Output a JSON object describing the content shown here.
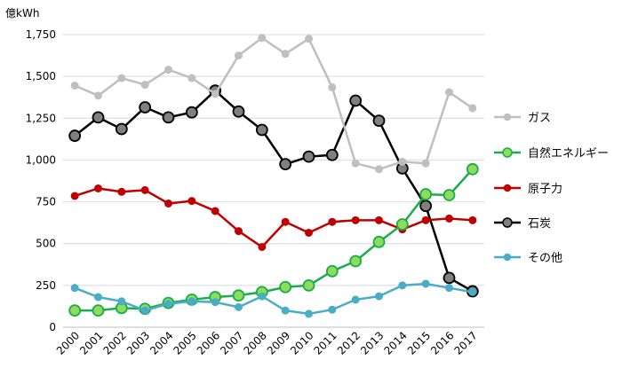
{
  "chart_data": {
    "type": "line",
    "unit": "億kWh",
    "x": [
      "2000",
      "2001",
      "2002",
      "2003",
      "2004",
      "2005",
      "2006",
      "2007",
      "2008",
      "2009",
      "2010",
      "2011",
      "2012",
      "2013",
      "2014",
      "2015",
      "2016",
      "2017"
    ],
    "ylim": [
      0,
      1750
    ],
    "yticks": [
      "0",
      "250",
      "500",
      "750",
      "1,000",
      "1,250",
      "1,500",
      "1,750"
    ],
    "ytick_values": [
      0,
      250,
      500,
      750,
      1000,
      1250,
      1500,
      1750
    ],
    "grid": true,
    "legend_position": "right",
    "series": [
      {
        "name": "ガス",
        "color": "#bfbfbf",
        "marker": "#bfbfbf",
        "marker_stroke": "#bfbfbf",
        "marker_size": "small",
        "values": [
          1445,
          1385,
          1490,
          1450,
          1540,
          1490,
          1395,
          1625,
          1730,
          1635,
          1725,
          1435,
          980,
          945,
          990,
          980,
          1405,
          1310
        ]
      },
      {
        "name": "自然エネルギー",
        "color": "#19ad4b",
        "marker": "#8fdc5c",
        "marker_stroke": "#19ad4b",
        "marker_size": "large",
        "values": [
          100,
          100,
          115,
          110,
          145,
          165,
          180,
          190,
          210,
          240,
          250,
          335,
          395,
          510,
          615,
          795,
          790,
          945
        ]
      },
      {
        "name": "原子力",
        "color": "#c00000",
        "marker": "#c00000",
        "marker_stroke": "#c00000",
        "marker_size": "small",
        "values": [
          785,
          830,
          810,
          820,
          740,
          755,
          695,
          575,
          480,
          630,
          565,
          630,
          640,
          640,
          585,
          640,
          650,
          640
        ]
      },
      {
        "name": "石炭",
        "color": "#000000",
        "marker": "#808080",
        "marker_stroke": "#000000",
        "marker_size": "large",
        "values": [
          1145,
          1255,
          1185,
          1315,
          1255,
          1285,
          1415,
          1290,
          1180,
          975,
          1020,
          1030,
          1355,
          1235,
          950,
          725,
          295,
          215
        ]
      },
      {
        "name": "その他",
        "color": "#4bacc6",
        "marker": "#4bacc6",
        "marker_stroke": "#4bacc6",
        "marker_size": "small",
        "values": [
          235,
          180,
          155,
          100,
          140,
          155,
          150,
          120,
          185,
          100,
          80,
          105,
          165,
          185,
          250,
          260,
          235,
          210
        ]
      }
    ],
    "order_drawn": [
      3,
      2,
      0,
      1,
      4
    ]
  }
}
